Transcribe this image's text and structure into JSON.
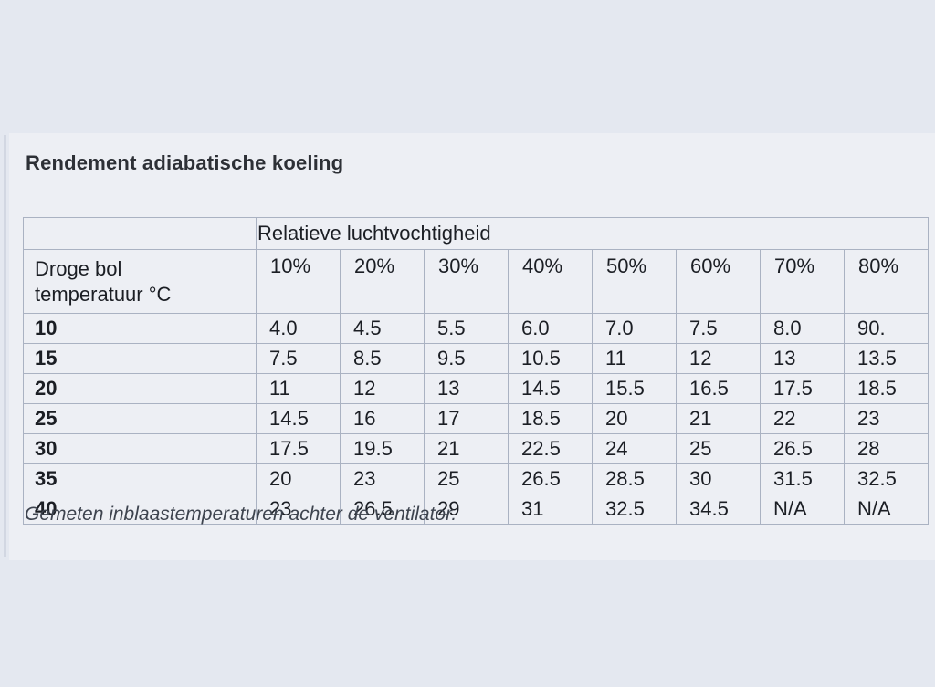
{
  "chart_data": {
    "type": "table",
    "title": "Rendement adiabatische koeling",
    "span_header": "Relatieve luchtvochtigheid",
    "row_header": "Droge bol temperatuur °C",
    "row_header_lines": [
      "Droge bol",
      "temperatuur °C"
    ],
    "columns": [
      "10%",
      "20%",
      "30%",
      "40%",
      "50%",
      "60%",
      "70%",
      "80%"
    ],
    "rows": [
      {
        "label": "10",
        "values": [
          "4.0",
          "4.5",
          "5.5",
          "6.0",
          "7.0",
          "7.5",
          "8.0",
          "90."
        ]
      },
      {
        "label": "15",
        "values": [
          "7.5",
          "8.5",
          "9.5",
          "10.5",
          "11",
          "12",
          "13",
          "13.5"
        ]
      },
      {
        "label": "20",
        "values": [
          "11",
          "12",
          "13",
          "14.5",
          "15.5",
          "16.5",
          "17.5",
          "18.5"
        ]
      },
      {
        "label": "25",
        "values": [
          "14.5",
          "16",
          "17",
          "18.5",
          "20",
          "21",
          "22",
          "23"
        ]
      },
      {
        "label": "30",
        "values": [
          "17.5",
          "19.5",
          "21",
          "22.5",
          "24",
          "25",
          "26.5",
          "28"
        ]
      },
      {
        "label": "35",
        "values": [
          "20",
          "23",
          "25",
          "26.5",
          "28.5",
          "30",
          "31.5",
          "32.5"
        ]
      },
      {
        "label": "40",
        "values": [
          "23",
          "26.5",
          "29",
          "31",
          "32.5",
          "34.5",
          "N/A",
          "N/A"
        ]
      }
    ],
    "footnote": "Gemeten inblaastemperaturen achter de ventilator.",
    "layout": {
      "grid": true,
      "span_header_covers_columns": 8,
      "header_bold": true
    }
  },
  "colors": {
    "page_background": "#e4e8f0",
    "panel_background": "#edeff4",
    "table_border": "#aab2c2",
    "table_outer_border": "#98a1b2",
    "text": "#1b1e24",
    "footnote_text": "#3d434e"
  }
}
